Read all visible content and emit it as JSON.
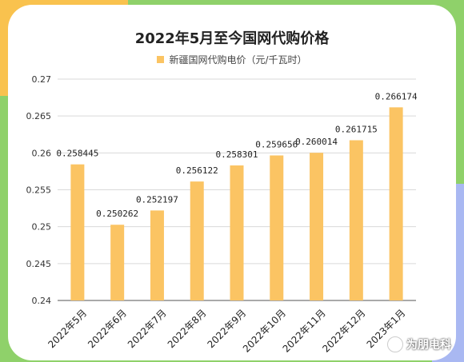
{
  "chart_data": {
    "type": "bar",
    "title": "2022年5月至今国网代购价格",
    "series": [
      {
        "name": "新疆国网代购电价（元/千瓦时）",
        "values": [
          0.258445,
          0.250262,
          0.252197,
          0.256122,
          0.258301,
          0.259656,
          0.260014,
          0.261715,
          0.266174
        ],
        "value_labels": [
          "0.258445",
          "0.250262",
          "0.252197",
          "0.256122",
          "0.258301",
          "0.259656",
          "0.260014",
          "0.261715",
          "0.266174"
        ]
      }
    ],
    "categories": [
      "2022年5月",
      "2022年6月",
      "2022年7月",
      "2022年8月",
      "2022年9月",
      "2022年10月",
      "2022年11月",
      "2022年12月",
      "2023年1月"
    ],
    "ylim": [
      0.24,
      0.27
    ],
    "yticks": [
      0.24,
      0.245,
      0.25,
      0.255,
      0.26,
      0.265,
      0.27
    ],
    "ytick_labels": [
      "0.24",
      "0.245",
      "0.25",
      "0.255",
      "0.26",
      "0.265",
      "0.27"
    ],
    "grid": true,
    "legend_position": "top",
    "colors": {
      "bar": "#fbc463",
      "grid": "#d9d9d9",
      "axis": "#555555"
    }
  },
  "watermark": {
    "text": "为朋电科",
    "icon": "wechat-icon"
  }
}
